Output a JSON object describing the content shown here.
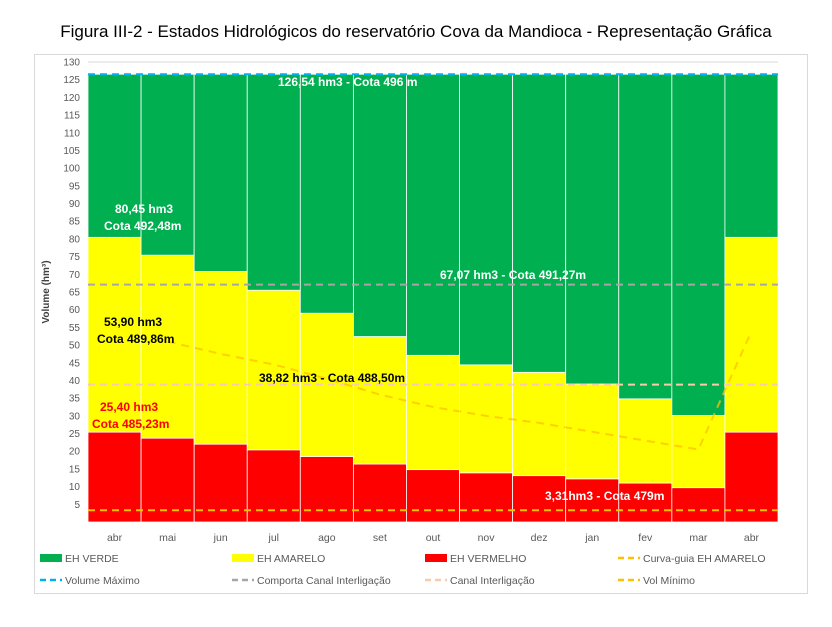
{
  "title": "Figura III-2 - Estados Hidrológicos do reservatório Cova da Mandioca - Representação Gráfica",
  "chart_data": {
    "type": "bar",
    "stacked": true,
    "title": "Figura III-2 - Estados Hidrológicos do reservatório Cova da Mandioca - Representação Gráfica",
    "xlabel": "",
    "ylabel": "Volume (hm³)",
    "ylim": [
      0,
      130
    ],
    "yticks": [
      "5",
      "10",
      "15",
      "20",
      "25",
      "30",
      "35",
      "40",
      "45",
      "50",
      "55",
      "60",
      "65",
      "70",
      "75",
      "80",
      "85",
      "90",
      "95",
      "100",
      "105",
      "110",
      "115",
      "120",
      "125",
      "130"
    ],
    "grid": true,
    "legend_position": "bottom",
    "categories": [
      "abr",
      "mai",
      "jun",
      "jul",
      "ago",
      "set",
      "out",
      "nov",
      "dez",
      "jan",
      "fev",
      "mar",
      "abr"
    ],
    "series": [
      {
        "name": "EH VERMELHO",
        "color": "#ff0000",
        "values": [
          25.4,
          23.7,
          22.0,
          20.4,
          18.5,
          16.4,
          14.8,
          13.9,
          13.1,
          12.2,
          11.0,
          9.7,
          25.4
        ]
      },
      {
        "name": "EH AMARELO",
        "color": "#ffff00",
        "values": [
          55.05,
          51.7,
          48.8,
          45.1,
          40.5,
          36.0,
          32.3,
          30.5,
          29.2,
          26.8,
          23.8,
          20.4,
          55.05
        ]
      },
      {
        "name": "EH VERDE",
        "color": "#00b050",
        "values": [
          46.09,
          51.14,
          55.74,
          61.04,
          67.54,
          74.14,
          79.44,
          82.14,
          84.24,
          87.54,
          91.74,
          96.44,
          46.09
        ]
      }
    ],
    "lines": [
      {
        "name": "Volume Máximo",
        "color": "#00b0f0",
        "dash": "dashed",
        "value": 126.54
      },
      {
        "name": "Comporta Canal Interligação",
        "color": "#a6a6a6",
        "dash": "dashed",
        "value": 67.07
      },
      {
        "name": "Canal Interligação",
        "color": "#f8cbad",
        "dash": "dashed",
        "value": 38.82
      },
      {
        "name": "Vol Mínimo",
        "color": "#ffc000",
        "dash": "dashed",
        "value": 3.31
      },
      {
        "name": "Curva-guia EH AMARELO",
        "color": "#ffc000",
        "dash": "dashed",
        "values": [
          53.9,
          51.0,
          47.5,
          44.5,
          40.5,
          36.0,
          32.5,
          30.0,
          28.0,
          25.5,
          23.0,
          20.5,
          53.9
        ]
      }
    ],
    "annotations": [
      {
        "text": "126,54 hm3 - Cota 496 m",
        "color": "#ffffff"
      },
      {
        "text": "80,45  hm3",
        "color": "#ffffff"
      },
      {
        "text": "Cota  492,48m",
        "color": "#ffffff"
      },
      {
        "text": "67,07  hm3 - Cota 491,27m",
        "color": "#ffffff"
      },
      {
        "text": "53,90  hm3",
        "color": "#000000"
      },
      {
        "text": "Cota 489,86m",
        "color": "#000000"
      },
      {
        "text": "38,82 hm3 - Cota 488,50m",
        "color": "#000000"
      },
      {
        "text": "25,40  hm3",
        "color": "#ff0000"
      },
      {
        "text": "Cota 485,23m",
        "color": "#ff0000"
      },
      {
        "text": "3,31hm3 - Cota 479m",
        "color": "#ffffff"
      }
    ],
    "legend": [
      {
        "label": "EH VERDE",
        "color": "#00b050",
        "kind": "box"
      },
      {
        "label": "EH AMARELO",
        "color": "#ffff00",
        "kind": "box"
      },
      {
        "label": "EH VERMELHO",
        "color": "#ff0000",
        "kind": "box"
      },
      {
        "label": "Curva-guia EH AMARELO",
        "color": "#ffc000",
        "kind": "dash"
      },
      {
        "label": "Volume Máximo",
        "color": "#00b0f0",
        "kind": "dash"
      },
      {
        "label": "Comporta Canal Interligação",
        "color": "#a6a6a6",
        "kind": "dash"
      },
      {
        "label": "Canal Interligação",
        "color": "#f8cbad",
        "kind": "dash"
      },
      {
        "label": "Vol Mínimo",
        "color": "#ffc000",
        "kind": "dash"
      }
    ]
  }
}
